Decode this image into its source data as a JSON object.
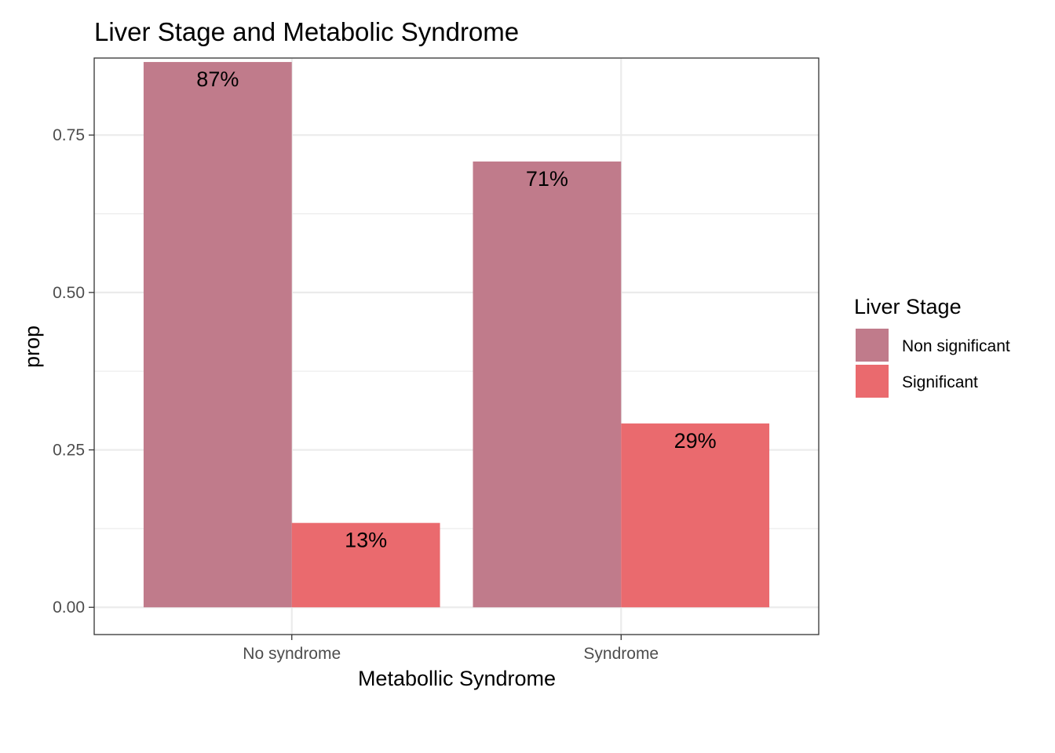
{
  "chart_data": {
    "type": "bar",
    "title": "Liver Stage and Metabolic Syndrome",
    "xlabel": "Metabollic Syndrome",
    "ylabel": "prop",
    "categories": [
      "No syndrome",
      "Syndrome"
    ],
    "series": [
      {
        "name": "Non significant",
        "values": [
          0.866,
          0.708
        ],
        "labels": [
          "87%",
          "71%"
        ],
        "color": "#c07b8b"
      },
      {
        "name": "Significant",
        "values": [
          0.134,
          0.292
        ],
        "labels": [
          "13%",
          "29%"
        ],
        "color": "#ea6a6e"
      }
    ],
    "ylim": [
      -0.0433,
      0.8723
    ],
    "yticks": [
      0,
      0.25,
      0.5,
      0.75
    ],
    "ytick_labels": [
      "0.00",
      "0.25",
      "0.50",
      "0.75"
    ],
    "grid": true,
    "legend": {
      "title": "Liver Stage",
      "position": "right"
    }
  }
}
